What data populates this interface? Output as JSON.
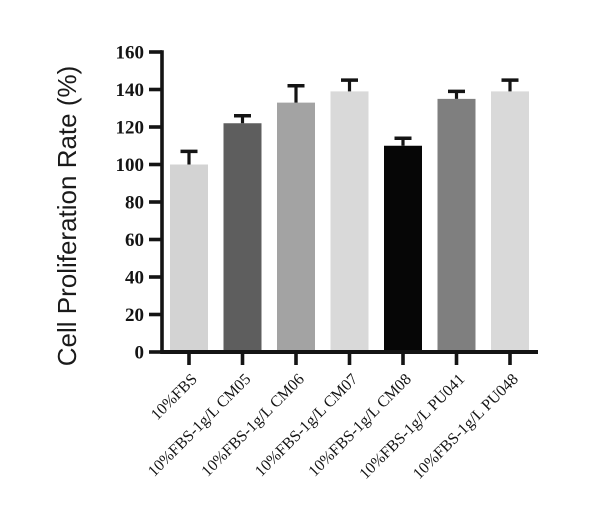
{
  "figure": {
    "background_color": "#ffffff",
    "axis_color": "#141414"
  },
  "chart_data": {
    "type": "bar",
    "title": "",
    "xlabel": "",
    "ylabel": "Cell Proliferation Rate (%)",
    "categories": [
      "10%FBS",
      "10%FBS-1g/L CM05",
      "10%FBS-1g/L CM06",
      "10%FBS-1g/L CM07",
      "10%FBS-1g/L CM08",
      "10%FBS-1g/L PU041",
      "10%FBS-1g/L PU048"
    ],
    "values": [
      100,
      122,
      133,
      139,
      110,
      135,
      139
    ],
    "errors": [
      7,
      4,
      9,
      6,
      4,
      4,
      6
    ],
    "error_bars": "upper-only",
    "bar_colors": [
      "#d3d3d3",
      "#5e5e5e",
      "#a3a3a3",
      "#d9d9d9",
      "#060606",
      "#7f7f7f",
      "#d9d9d9"
    ],
    "ylim": [
      0,
      160
    ],
    "yticks": [
      0,
      20,
      40,
      60,
      80,
      100,
      120,
      140,
      160
    ],
    "x_label_rotation_deg": -45,
    "grid": false,
    "legend": "none"
  }
}
